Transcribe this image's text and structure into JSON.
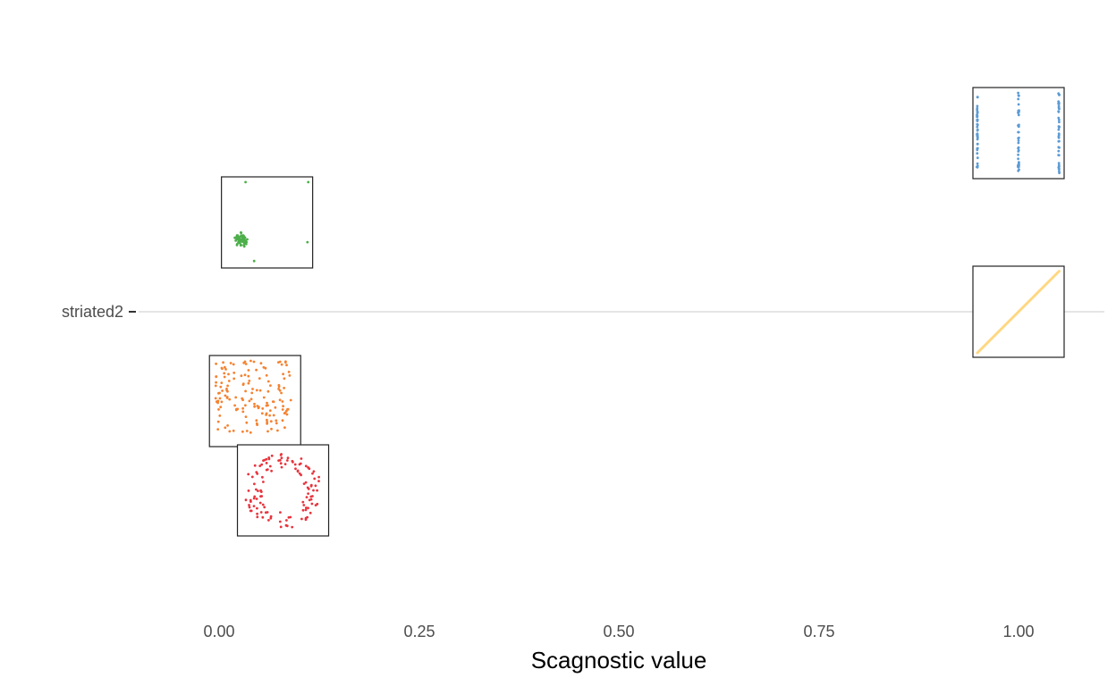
{
  "chart_data": {
    "type": "scatter",
    "title": "",
    "xlabel": "Scagnostic value",
    "ylabel": "",
    "xlim": [
      -0.11,
      1.11
    ],
    "x_ticks": [
      "0.00",
      "0.25",
      "0.50",
      "0.75",
      "1.00"
    ],
    "x_tick_values": [
      0,
      0.25,
      0.5,
      0.75,
      1.0
    ],
    "categories": [
      "striated2"
    ],
    "grid": "horizontal line at category only",
    "legend": "none",
    "glyphs": [
      {
        "x": 1.0,
        "offset": 2,
        "pattern": "striated",
        "color": "#5b9bd5"
      },
      {
        "x": 0.06,
        "offset": 1,
        "pattern": "clumpy",
        "color": "#4daf4a"
      },
      {
        "x": 1.0,
        "offset": 0,
        "pattern": "linear",
        "color": "#ffd780"
      },
      {
        "x": 0.045,
        "offset": -1,
        "pattern": "random",
        "color": "#f58231"
      },
      {
        "x": 0.08,
        "offset": -2,
        "pattern": "ring",
        "color": "#e8343d"
      }
    ]
  }
}
